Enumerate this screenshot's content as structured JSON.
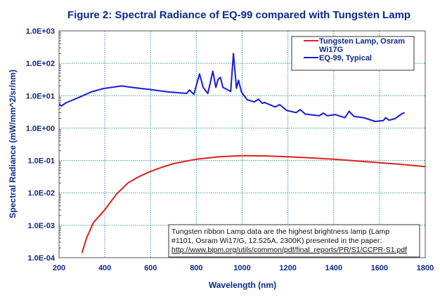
{
  "chart_data": {
    "type": "line",
    "title": "Figure 2: Spectral Radiance of EQ-99 compared with Tungsten Lamp",
    "xlabel": "Wavelength (nm)",
    "ylabel": "Spectral Radiance (mW/mm^2/sr/nm)",
    "xlim": [
      200,
      1800
    ],
    "ylim": [
      0.0001,
      1000
    ],
    "yscale": "log",
    "grid": true,
    "legend_position": "top-right",
    "x_ticks": [
      "200",
      "400",
      "600",
      "800",
      "1000",
      "1200",
      "1400",
      "1600",
      "1800"
    ],
    "y_ticks": [
      "1.0E-04",
      "1.0E-03",
      "1.0E-02",
      "1.0E-01",
      "1.0E+00",
      "1.0E+01",
      "1.0E+02",
      "1.0E+03"
    ],
    "series": [
      {
        "name": "Tungsten Lamp, Osram Wi17G",
        "color": "#e0201c",
        "x": [
          300,
          320,
          350,
          400,
          450,
          500,
          550,
          600,
          650,
          700,
          800,
          900,
          1000,
          1100,
          1200,
          1300,
          1400,
          1500,
          1600,
          1700,
          1800
        ],
        "y": [
          0.00014,
          0.0004,
          0.0012,
          0.003,
          0.009,
          0.02,
          0.032,
          0.046,
          0.062,
          0.08,
          0.11,
          0.13,
          0.14,
          0.138,
          0.13,
          0.12,
          0.11,
          0.097,
          0.085,
          0.075,
          0.065
        ]
      },
      {
        "name": "EQ-99, Typical",
        "color": "#1a1ad8",
        "x": [
          200,
          210,
          230,
          289,
          340,
          391,
          473,
          520,
          595,
          680,
          758,
          770,
          789,
          814,
          830,
          850,
          872,
          885,
          895,
          905,
          916,
          931,
          950,
          962,
          975,
          984,
          997,
          1022,
          1053,
          1071,
          1088,
          1098,
          1144,
          1164,
          1195,
          1236,
          1254,
          1276,
          1337,
          1355,
          1372,
          1408,
          1449,
          1467,
          1489,
          1530,
          1540,
          1581,
          1617,
          1627,
          1642,
          1668,
          1699,
          1710
        ],
        "y": [
          5.5,
          4.8,
          6,
          9,
          13,
          16.5,
          20,
          18,
          15.6,
          13,
          11.8,
          15,
          11,
          47,
          18,
          11.7,
          57,
          18,
          32,
          37,
          18,
          16,
          13.5,
          200,
          17,
          30,
          13,
          7.5,
          6.4,
          7.8,
          5.8,
          6.2,
          4.5,
          5.3,
          3.5,
          3,
          3.7,
          2.7,
          2.4,
          2.9,
          2.4,
          2.6,
          2.1,
          3.3,
          2.3,
          2.1,
          2.0,
          1.6,
          1.7,
          2.1,
          1.75,
          1.95,
          2.8,
          3.0
        ]
      }
    ],
    "annotation": {
      "lines": [
        "Tungsten ribbon Lamp data are the highest brightness lamp (Lamp",
        "#1101, Osram Wi17/G, 12.525A, 2300K) presented in the paper:",
        "http://www.bipm.org/utils/common/pdf/final_reports/PR/S1/CCPR-S1.pdf"
      ]
    },
    "legend": [
      "Tungsten Lamp, Osram",
      "Wi17G",
      "EQ-99, Typical"
    ]
  }
}
